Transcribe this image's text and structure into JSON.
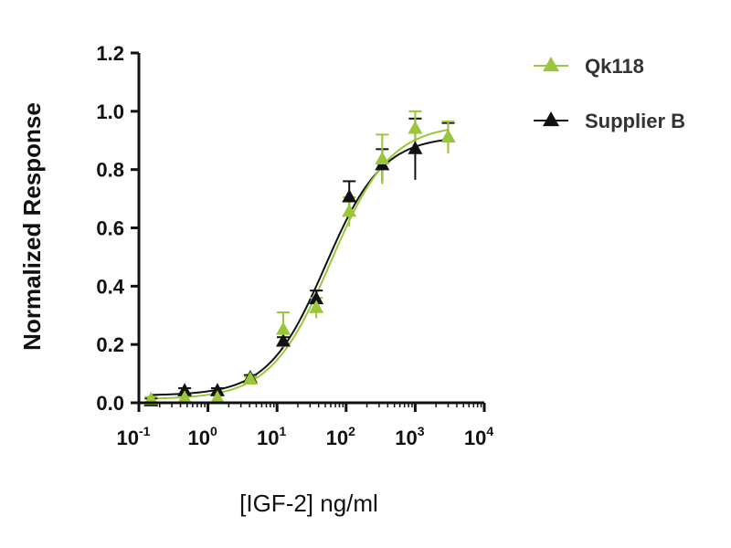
{
  "chart_data": {
    "type": "scatter",
    "title": "",
    "xlabel": "[IGF-2] ng/ml",
    "ylabel": "Normalized Response",
    "x_scale": "log",
    "xlim": [
      0.1,
      10000
    ],
    "ylim": [
      0,
      1.2
    ],
    "x_ticks": [
      0.1,
      1,
      10,
      100,
      1000,
      10000
    ],
    "x_tick_labels": [
      {
        "base": "10",
        "exp": "-1"
      },
      {
        "base": "10",
        "exp": "0"
      },
      {
        "base": "10",
        "exp": "1"
      },
      {
        "base": "10",
        "exp": "2"
      },
      {
        "base": "10",
        "exp": "3"
      },
      {
        "base": "10",
        "exp": "4"
      }
    ],
    "y_ticks": [
      "0.0",
      "0.2",
      "0.4",
      "0.6",
      "0.8",
      "1.0",
      "1.2"
    ],
    "grid": false,
    "legend_position": "top-right",
    "series": [
      {
        "name": "Qk118",
        "color": "#99c739",
        "marker": "triangle",
        "x": [
          0.15,
          0.46,
          1.37,
          4.1,
          12.3,
          37,
          111,
          333,
          1000,
          3000
        ],
        "y": [
          0.01,
          0.015,
          0.015,
          0.08,
          0.25,
          0.325,
          0.655,
          0.835,
          0.94,
          0.91
        ],
        "error": [
          0.01,
          0.01,
          0.01,
          0.01,
          0.06,
          0.035,
          0.05,
          0.085,
          0.06,
          0.055
        ],
        "fit": {
          "bottom": 0.012,
          "top": 0.955,
          "ec50": 60,
          "hill": 1.0
        }
      },
      {
        "name": "Supplier B",
        "color": "#111111",
        "marker": "triangle",
        "x": [
          0.15,
          0.46,
          1.37,
          4.1,
          12.3,
          37,
          111,
          333,
          1000,
          3000
        ],
        "y": [
          0.005,
          0.04,
          0.04,
          0.085,
          0.21,
          0.355,
          0.705,
          0.815,
          0.87,
          0.91
        ],
        "error": [
          0.01,
          0.01,
          0.01,
          0.01,
          0.015,
          0.03,
          0.055,
          0.055,
          0.105,
          0.05
        ],
        "fit": {
          "bottom": 0.025,
          "top": 0.915,
          "ec50": 50,
          "hill": 1.05
        }
      }
    ]
  }
}
